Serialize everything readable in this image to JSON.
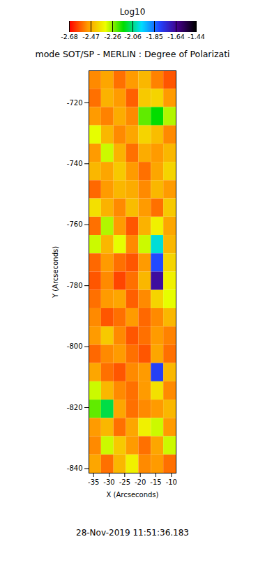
{
  "chart_data": {
    "type": "heatmap",
    "title": "mode SOT/SP - MERLIN : Degree of Polarizati",
    "x_label": "X (Arcseconds)",
    "y_label": "Y (Arcseconds)",
    "xlim": [
      -36.5,
      -8.5
    ],
    "ylim": [
      -841.5,
      -709.5
    ],
    "xticks": [
      -35,
      -30,
      -25,
      -20,
      -15,
      -10
    ],
    "yticks": [
      -720,
      -740,
      -760,
      -780,
      -800,
      -820,
      -840
    ],
    "x_edges": [
      -36.5,
      -32.5,
      -28.5,
      -24.5,
      -20.5,
      -16.5,
      -12.5,
      -8.5
    ],
    "y_edges": [
      -709.5,
      -715.5,
      -721.5,
      -727.5,
      -733.5,
      -739.5,
      -745.5,
      -751.5,
      -757.5,
      -763.5,
      -769.5,
      -775.5,
      -781.5,
      -787.5,
      -793.5,
      -799.5,
      -805.5,
      -811.5,
      -817.5,
      -823.5,
      -829.5,
      -835.5,
      -841.5
    ],
    "cells": [
      [
        -2.52,
        -2.48,
        -2.55,
        -2.5,
        -2.45,
        -2.53,
        -2.58
      ],
      [
        -2.55,
        -2.46,
        -2.5,
        -2.57,
        -2.42,
        -2.4,
        -2.5
      ],
      [
        -2.5,
        -2.53,
        -2.47,
        -2.52,
        -2.22,
        -2.15,
        -2.28
      ],
      [
        -2.32,
        -2.45,
        -2.52,
        -2.48,
        -2.4,
        -2.44,
        -2.52
      ],
      [
        -2.5,
        -2.3,
        -2.46,
        -2.55,
        -2.47,
        -2.5,
        -2.45
      ],
      [
        -2.45,
        -2.48,
        -2.42,
        -2.5,
        -2.55,
        -2.48,
        -2.4
      ],
      [
        -2.56,
        -2.5,
        -2.45,
        -2.47,
        -2.52,
        -2.45,
        -2.5
      ],
      [
        -2.38,
        -2.46,
        -2.52,
        -2.44,
        -2.5,
        -2.55,
        -2.42
      ],
      [
        -2.55,
        -2.28,
        -2.5,
        -2.58,
        -2.46,
        -2.35,
        -2.48
      ],
      [
        -2.3,
        -2.45,
        -2.32,
        -2.52,
        -2.3,
        -2.0,
        -2.45
      ],
      [
        -2.56,
        -2.5,
        -2.55,
        -2.58,
        -2.5,
        -1.8,
        -2.4
      ],
      [
        -2.58,
        -2.52,
        -2.6,
        -2.55,
        -2.45,
        -1.65,
        -2.35
      ],
      [
        -2.55,
        -2.5,
        -2.48,
        -2.57,
        -2.52,
        -2.4,
        -2.32
      ],
      [
        -2.52,
        -2.58,
        -2.55,
        -2.5,
        -2.56,
        -2.52,
        -2.45
      ],
      [
        -2.5,
        -2.42,
        -2.52,
        -2.58,
        -2.55,
        -2.5,
        -2.53
      ],
      [
        -2.56,
        -2.52,
        -2.5,
        -2.55,
        -2.58,
        -2.48,
        -2.55
      ],
      [
        -2.48,
        -2.55,
        -2.58,
        -2.52,
        -2.5,
        -1.78,
        -2.45
      ],
      [
        -2.3,
        -2.45,
        -2.52,
        -2.55,
        -2.5,
        -2.38,
        -2.52
      ],
      [
        -2.22,
        -2.1,
        -2.48,
        -2.55,
        -2.52,
        -2.5,
        -2.45
      ],
      [
        -2.5,
        -2.45,
        -2.55,
        -2.48,
        -2.35,
        -2.3,
        -2.5
      ],
      [
        -2.52,
        -2.3,
        -2.42,
        -2.5,
        -2.55,
        -2.48,
        -2.3
      ],
      [
        -2.48,
        -2.55,
        -2.45,
        -2.35,
        -2.52,
        -2.5,
        -2.55
      ]
    ],
    "colorbar": {
      "label": "Log10",
      "range": [
        -2.68,
        -1.44
      ],
      "ticks": [
        -2.68,
        -2.47,
        -2.26,
        -2.06,
        -1.85,
        -1.64,
        -1.44
      ]
    },
    "caption": "28-Nov-2019 11:51:36.183"
  }
}
